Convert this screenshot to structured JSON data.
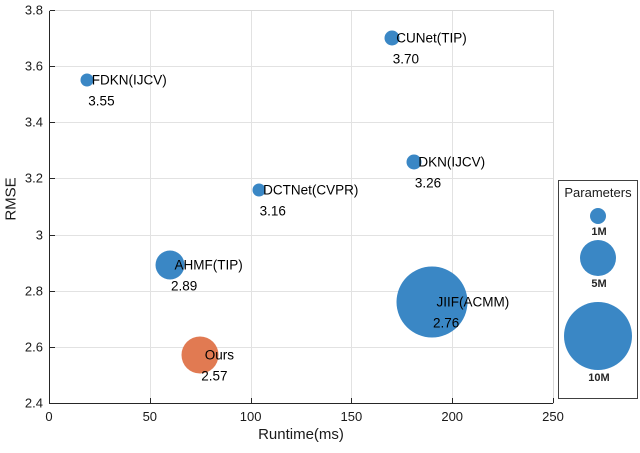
{
  "chart_data": {
    "type": "scatter",
    "title": "",
    "xlabel": "Runtime(ms)",
    "ylabel": "RMSE",
    "xlim": [
      0,
      250
    ],
    "ylim": [
      2.4,
      3.8
    ],
    "grid": true,
    "xticks": [
      {
        "value": 0,
        "label": "0"
      },
      {
        "value": 50,
        "label": "50"
      },
      {
        "value": 100,
        "label": "100"
      },
      {
        "value": 150,
        "label": "150"
      },
      {
        "value": 200,
        "label": "200"
      },
      {
        "value": 250,
        "label": "250"
      }
    ],
    "yticks": [
      {
        "value": 2.4,
        "label": "2.4"
      },
      {
        "value": 2.6,
        "label": "2.6"
      },
      {
        "value": 2.8,
        "label": "2.8"
      },
      {
        "value": 3.0,
        "label": "3"
      },
      {
        "value": 3.2,
        "label": "3.2"
      },
      {
        "value": 3.4,
        "label": "3.4"
      },
      {
        "value": 3.6,
        "label": "3.6"
      },
      {
        "value": 3.8,
        "label": "3.8"
      }
    ],
    "colors": {
      "primary": "#3A87C5",
      "highlight": "#E17A52",
      "grid": "#e2e2e2",
      "axis": "#262626",
      "spine_light": "#d9d9d9"
    },
    "points": [
      {
        "name": "FDKN(IJCV)",
        "value_label": "3.55",
        "runtime_ms": 19,
        "rmse": 3.55,
        "radius_px": 6.5,
        "color_key": "primary"
      },
      {
        "name": "CUNet(TIP)",
        "value_label": "3.70",
        "runtime_ms": 170,
        "rmse": 3.7,
        "radius_px": 7.5,
        "color_key": "primary"
      },
      {
        "name": "DCTNet(CVPR)",
        "value_label": "3.16",
        "runtime_ms": 104,
        "rmse": 3.16,
        "radius_px": 6.5,
        "color_key": "primary"
      },
      {
        "name": "DKN(IJCV)",
        "value_label": "3.26",
        "runtime_ms": 181,
        "rmse": 3.26,
        "radius_px": 7.5,
        "color_key": "primary"
      },
      {
        "name": "AHMF(TIP)",
        "value_label": "2.89",
        "runtime_ms": 60,
        "rmse": 2.89,
        "radius_px": 14.5,
        "color_key": "primary"
      },
      {
        "name": "JIIF(ACMM)",
        "value_label": "2.76",
        "runtime_ms": 190,
        "rmse": 2.76,
        "radius_px": 35.5,
        "color_key": "primary"
      },
      {
        "name": "Ours",
        "value_label": "2.57",
        "runtime_ms": 75,
        "rmse": 2.57,
        "radius_px": 18.5,
        "color_key": "highlight"
      }
    ],
    "legend": {
      "title": "Parameters",
      "position": "outside-right",
      "entries": [
        {
          "label": "1M",
          "radius_px": 8
        },
        {
          "label": "5M",
          "radius_px": 18
        },
        {
          "label": "10M",
          "radius_px": 34
        }
      ]
    }
  }
}
